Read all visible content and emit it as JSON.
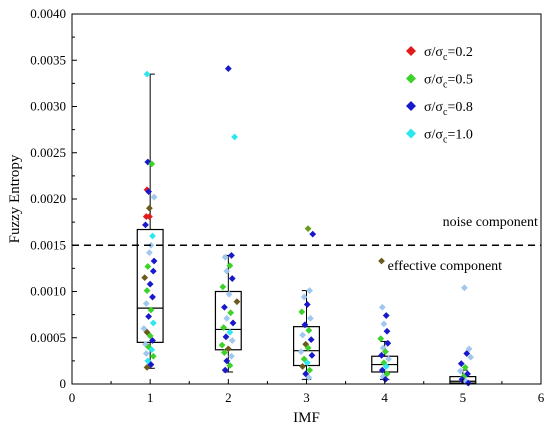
{
  "chart_data": {
    "type": "box",
    "xlabel": "IMF",
    "ylabel": "Fuzzy Entropy",
    "xlim": [
      0,
      6
    ],
    "ylim": [
      0,
      0.004
    ],
    "x_ticks": [
      "0",
      "1",
      "2",
      "3",
      "4",
      "5",
      "6"
    ],
    "y_ticks": [
      "0",
      "0.0005",
      "0.0010",
      "0.0015",
      "0.0020",
      "0.0025",
      "0.0030",
      "0.0035",
      "0.0040"
    ],
    "threshold": {
      "value": 0.0015,
      "style": "dashed"
    },
    "annotations": [
      {
        "text": "noise component",
        "x": 4.0,
        "y": 0.00171
      },
      {
        "text": "effective component",
        "x": 4.0,
        "y": 0.00123
      }
    ],
    "legend": {
      "position": "top-right",
      "entries": [
        {
          "text": "σ/σc=0.2",
          "color": "#e01b1b"
        },
        {
          "text": "σ/σc=0.5",
          "color": "#3cd22a"
        },
        {
          "text": "σ/σc=0.8",
          "color": "#1919cc"
        },
        {
          "text": "σ/σc=1.0",
          "color": "#2ee6ee"
        }
      ]
    },
    "boxes": [
      {
        "x": 1,
        "whisker_low": 0.00017,
        "q1": 0.00045,
        "median": 0.00082,
        "q3": 0.00167,
        "whisker_high": 0.00335
      },
      {
        "x": 2,
        "whisker_low": 0.00013,
        "q1": 0.00037,
        "median": 0.00059,
        "q3": 0.001,
        "whisker_high": 0.00139
      },
      {
        "x": 3,
        "whisker_low": 5e-05,
        "q1": 0.0002,
        "median": 0.00036,
        "q3": 0.00062,
        "whisker_high": 0.00101
      },
      {
        "x": 4,
        "whisker_low": 5e-05,
        "q1": 0.00013,
        "median": 0.00021,
        "q3": 0.0003,
        "whisker_high": 0.00046
      },
      {
        "x": 5,
        "whisker_low": 0.0,
        "q1": 1e-05,
        "median": 3e-05,
        "q3": 8e-05,
        "whisker_high": 0.00015
      }
    ],
    "points": [
      {
        "x": 0.96,
        "y": 0.00335,
        "c": "#2ee6ee"
      },
      {
        "x": 0.97,
        "y": 0.0024,
        "c": "#1919cc"
      },
      {
        "x": 1.02,
        "y": 0.00238,
        "c": "#3cd22a"
      },
      {
        "x": 0.96,
        "y": 0.0021,
        "c": "#e01b1b"
      },
      {
        "x": 0.98,
        "y": 0.00208,
        "c": "#1919cc"
      },
      {
        "x": 1.05,
        "y": 0.00202,
        "c": "#a0c8ee"
      },
      {
        "x": 0.99,
        "y": 0.0019,
        "c": "#6b5a1e"
      },
      {
        "x": 0.95,
        "y": 0.00181,
        "c": "#e01b1b"
      },
      {
        "x": 0.99,
        "y": 0.00181,
        "c": "#e01b1b"
      },
      {
        "x": 0.94,
        "y": 0.00172,
        "c": "#1919cc"
      },
      {
        "x": 1.03,
        "y": 0.0016,
        "c": "#2ee6ee"
      },
      {
        "x": 1.01,
        "y": 0.0015,
        "c": "#a0c8ee"
      },
      {
        "x": 0.99,
        "y": 0.00142,
        "c": "#a0c8ee"
      },
      {
        "x": 1.05,
        "y": 0.00133,
        "c": "#1919cc"
      },
      {
        "x": 0.97,
        "y": 0.00127,
        "c": "#3cd22a"
      },
      {
        "x": 1.04,
        "y": 0.00122,
        "c": "#1919cc"
      },
      {
        "x": 0.93,
        "y": 0.00115,
        "c": "#6b5a1e"
      },
      {
        "x": 1.0,
        "y": 0.00108,
        "c": "#1919cc"
      },
      {
        "x": 0.96,
        "y": 0.00101,
        "c": "#3cd22a"
      },
      {
        "x": 1.03,
        "y": 0.00094,
        "c": "#1919cc"
      },
      {
        "x": 0.95,
        "y": 0.00087,
        "c": "#a0c8ee"
      },
      {
        "x": 1.01,
        "y": 0.0008,
        "c": "#3cd22a"
      },
      {
        "x": 0.98,
        "y": 0.00073,
        "c": "#1919cc"
      },
      {
        "x": 1.04,
        "y": 0.00066,
        "c": "#2ee6ee"
      },
      {
        "x": 0.92,
        "y": 0.0006,
        "c": "#a0c8ee"
      },
      {
        "x": 0.96,
        "y": 0.00056,
        "c": "#6b5a1e"
      },
      {
        "x": 1.0,
        "y": 0.00052,
        "c": "#3cd22a"
      },
      {
        "x": 1.03,
        "y": 0.00047,
        "c": "#1919cc"
      },
      {
        "x": 0.94,
        "y": 0.00043,
        "c": "#a0c8ee"
      },
      {
        "x": 0.98,
        "y": 0.0004,
        "c": "#3cd22a"
      },
      {
        "x": 1.02,
        "y": 0.00037,
        "c": "#2ee6ee"
      },
      {
        "x": 0.95,
        "y": 0.00033,
        "c": "#a0c8ee"
      },
      {
        "x": 1.04,
        "y": 0.0003,
        "c": "#3cd22a"
      },
      {
        "x": 0.97,
        "y": 0.00025,
        "c": "#2ee6ee"
      },
      {
        "x": 1.01,
        "y": 0.00021,
        "c": "#1919cc"
      },
      {
        "x": 0.96,
        "y": 0.00018,
        "c": "#6b5a1e"
      },
      {
        "x": 2.0,
        "y": 0.00341,
        "c": "#1919cc"
      },
      {
        "x": 2.08,
        "y": 0.00267,
        "c": "#2ee6ee"
      },
      {
        "x": 2.04,
        "y": 0.00139,
        "c": "#1919cc"
      },
      {
        "x": 1.96,
        "y": 0.00137,
        "c": "#a0c8ee"
      },
      {
        "x": 2.02,
        "y": 0.00128,
        "c": "#3cd22a"
      },
      {
        "x": 1.98,
        "y": 0.00122,
        "c": "#a0c8ee"
      },
      {
        "x": 2.05,
        "y": 0.00114,
        "c": "#1919cc"
      },
      {
        "x": 1.93,
        "y": 0.00105,
        "c": "#3cd22a"
      },
      {
        "x": 2.01,
        "y": 0.00097,
        "c": "#a0c8ee"
      },
      {
        "x": 2.11,
        "y": 0.00089,
        "c": "#6b5a1e"
      },
      {
        "x": 1.95,
        "y": 0.00083,
        "c": "#1919cc"
      },
      {
        "x": 2.03,
        "y": 0.00077,
        "c": "#3cd22a"
      },
      {
        "x": 1.98,
        "y": 0.00071,
        "c": "#a0c8ee"
      },
      {
        "x": 2.06,
        "y": 0.00066,
        "c": "#1919cc"
      },
      {
        "x": 1.94,
        "y": 0.00061,
        "c": "#3cd22a"
      },
      {
        "x": 2.02,
        "y": 0.00056,
        "c": "#2ee6ee"
      },
      {
        "x": 1.97,
        "y": 0.00051,
        "c": "#1919cc"
      },
      {
        "x": 2.05,
        "y": 0.00047,
        "c": "#a0c8ee"
      },
      {
        "x": 1.92,
        "y": 0.00042,
        "c": "#3cd22a"
      },
      {
        "x": 2.0,
        "y": 0.00038,
        "c": "#6b5a1e"
      },
      {
        "x": 1.95,
        "y": 0.00034,
        "c": "#3cd22a"
      },
      {
        "x": 2.04,
        "y": 0.0003,
        "c": "#a0c8ee"
      },
      {
        "x": 1.98,
        "y": 0.00025,
        "c": "#1919cc"
      },
      {
        "x": 2.02,
        "y": 0.0002,
        "c": "#3cd22a"
      },
      {
        "x": 1.96,
        "y": 0.00015,
        "c": "#1919cc"
      },
      {
        "x": 3.02,
        "y": 0.00168,
        "c": "#6b9a1e"
      },
      {
        "x": 3.08,
        "y": 0.00162,
        "c": "#1919cc"
      },
      {
        "x": 3.04,
        "y": 0.00101,
        "c": "#a0c8ee"
      },
      {
        "x": 2.97,
        "y": 0.00094,
        "c": "#a0c8ee"
      },
      {
        "x": 3.01,
        "y": 0.00086,
        "c": "#1919cc"
      },
      {
        "x": 2.94,
        "y": 0.00078,
        "c": "#3cd22a"
      },
      {
        "x": 3.05,
        "y": 0.00071,
        "c": "#a0c8ee"
      },
      {
        "x": 2.98,
        "y": 0.00064,
        "c": "#1919cc"
      },
      {
        "x": 3.03,
        "y": 0.00058,
        "c": "#3cd22a"
      },
      {
        "x": 2.95,
        "y": 0.00053,
        "c": "#a0c8ee"
      },
      {
        "x": 3.06,
        "y": 0.00048,
        "c": "#1919cc"
      },
      {
        "x": 2.99,
        "y": 0.00043,
        "c": "#6b5a1e"
      },
      {
        "x": 3.02,
        "y": 0.00039,
        "c": "#3cd22a"
      },
      {
        "x": 2.93,
        "y": 0.00035,
        "c": "#a0c8ee"
      },
      {
        "x": 3.07,
        "y": 0.00031,
        "c": "#1919cc"
      },
      {
        "x": 2.97,
        "y": 0.00027,
        "c": "#3cd22a"
      },
      {
        "x": 3.01,
        "y": 0.00023,
        "c": "#2ee6ee"
      },
      {
        "x": 2.95,
        "y": 0.00019,
        "c": "#6b5a1e"
      },
      {
        "x": 3.04,
        "y": 0.00015,
        "c": "#3cd22a"
      },
      {
        "x": 2.99,
        "y": 0.00011,
        "c": "#1919cc"
      },
      {
        "x": 3.03,
        "y": 7e-05,
        "c": "#a0c8ee"
      },
      {
        "x": 3.96,
        "y": 0.00133,
        "c": "#6b5a1e"
      },
      {
        "x": 3.97,
        "y": 0.00083,
        "c": "#a0c8ee"
      },
      {
        "x": 4.02,
        "y": 0.00074,
        "c": "#1919cc"
      },
      {
        "x": 3.99,
        "y": 0.00065,
        "c": "#a0c8ee"
      },
      {
        "x": 4.03,
        "y": 0.00057,
        "c": "#1919cc"
      },
      {
        "x": 3.95,
        "y": 0.00049,
        "c": "#3cd22a"
      },
      {
        "x": 4.04,
        "y": 0.00044,
        "c": "#1919cc"
      },
      {
        "x": 3.98,
        "y": 0.00039,
        "c": "#a0c8ee"
      },
      {
        "x": 4.01,
        "y": 0.00035,
        "c": "#3cd22a"
      },
      {
        "x": 3.96,
        "y": 0.00031,
        "c": "#1919cc"
      },
      {
        "x": 4.05,
        "y": 0.00027,
        "c": "#a0c8ee"
      },
      {
        "x": 3.99,
        "y": 0.00023,
        "c": "#3cd22a"
      },
      {
        "x": 4.02,
        "y": 0.00019,
        "c": "#2ee6ee"
      },
      {
        "x": 3.97,
        "y": 0.00015,
        "c": "#1919cc"
      },
      {
        "x": 4.03,
        "y": 0.00011,
        "c": "#3cd22a"
      },
      {
        "x": 3.98,
        "y": 8e-05,
        "c": "#a0c8ee"
      },
      {
        "x": 4.01,
        "y": 5e-05,
        "c": "#1919cc"
      },
      {
        "x": 5.02,
        "y": 0.00104,
        "c": "#a0c8ee"
      },
      {
        "x": 5.08,
        "y": 0.00038,
        "c": "#a0c8ee"
      },
      {
        "x": 5.05,
        "y": 0.00033,
        "c": "#1919cc"
      },
      {
        "x": 5.1,
        "y": 0.00029,
        "c": "#a0c8ee"
      },
      {
        "x": 4.98,
        "y": 0.00022,
        "c": "#1919cc"
      },
      {
        "x": 5.03,
        "y": 0.00018,
        "c": "#3cd22a"
      },
      {
        "x": 4.97,
        "y": 0.00014,
        "c": "#a0c8ee"
      },
      {
        "x": 5.06,
        "y": 0.00011,
        "c": "#1919cc"
      },
      {
        "x": 5.01,
        "y": 8e-05,
        "c": "#3cd22a"
      },
      {
        "x": 4.99,
        "y": 5e-05,
        "c": "#1919cc"
      },
      {
        "x": 5.04,
        "y": 3e-05,
        "c": "#a0c8ee"
      },
      {
        "x": 5.07,
        "y": 1e-05,
        "c": "#1919cc"
      }
    ]
  }
}
